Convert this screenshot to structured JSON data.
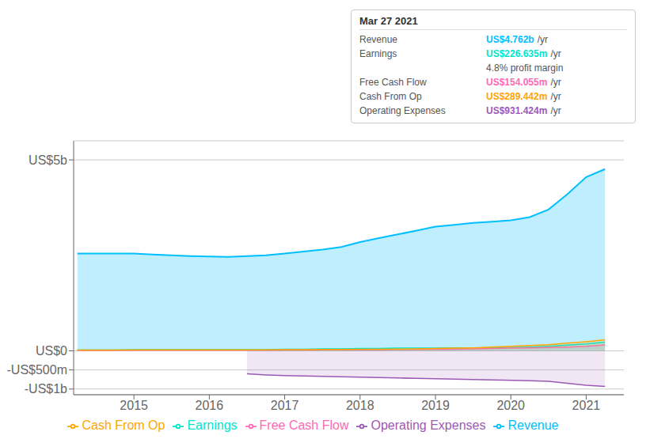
{
  "chart_data": {
    "type": "area",
    "x": [
      2014.25,
      2014.5,
      2014.75,
      2015.0,
      2015.25,
      2015.5,
      2015.75,
      2016.0,
      2016.25,
      2016.5,
      2016.75,
      2017.0,
      2017.25,
      2017.5,
      2017.75,
      2018.0,
      2018.25,
      2018.5,
      2018.75,
      2019.0,
      2019.25,
      2019.5,
      2019.75,
      2020.0,
      2020.25,
      2020.5,
      2020.75,
      2021.0,
      2021.25
    ],
    "series": [
      {
        "name": "Revenue",
        "color": "#00bfff",
        "values": [
          2.55,
          2.55,
          2.55,
          2.55,
          2.52,
          2.5,
          2.48,
          2.47,
          2.46,
          2.48,
          2.5,
          2.55,
          2.6,
          2.65,
          2.72,
          2.85,
          2.95,
          3.05,
          3.15,
          3.25,
          3.3,
          3.35,
          3.38,
          3.42,
          3.5,
          3.7,
          4.1,
          4.55,
          4.76
        ]
      },
      {
        "name": "Earnings",
        "color": "#00e5cc",
        "values": [
          0.02,
          0.02,
          0.02,
          0.03,
          0.03,
          0.03,
          0.03,
          0.03,
          0.03,
          0.03,
          0.03,
          0.04,
          0.04,
          0.05,
          0.05,
          0.06,
          0.06,
          0.07,
          0.07,
          0.07,
          0.08,
          0.08,
          0.08,
          0.09,
          0.1,
          0.12,
          0.15,
          0.18,
          0.226
        ]
      },
      {
        "name": "Free Cash Flow",
        "color": "#ff69b4",
        "values": [
          0.01,
          0.01,
          0.01,
          0.015,
          0.015,
          0.015,
          0.015,
          0.015,
          0.015,
          0.015,
          0.015,
          0.02,
          0.02,
          0.025,
          0.025,
          0.03,
          0.03,
          0.035,
          0.035,
          0.04,
          0.04,
          0.05,
          0.06,
          0.07,
          0.08,
          0.09,
          0.1,
          0.12,
          0.154
        ]
      },
      {
        "name": "Cash From Op",
        "color": "#ffa500",
        "values": [
          0.02,
          0.02,
          0.02,
          0.025,
          0.025,
          0.025,
          0.025,
          0.025,
          0.025,
          0.025,
          0.025,
          0.03,
          0.03,
          0.035,
          0.035,
          0.04,
          0.04,
          0.045,
          0.05,
          0.06,
          0.07,
          0.08,
          0.1,
          0.12,
          0.14,
          0.16,
          0.2,
          0.24,
          0.289
        ]
      },
      {
        "name": "Operating Expenses",
        "color": "#9b59b6",
        "values": [
          null,
          null,
          null,
          null,
          null,
          null,
          null,
          null,
          null,
          -0.6,
          -0.63,
          -0.65,
          -0.66,
          -0.67,
          -0.68,
          -0.69,
          -0.7,
          -0.71,
          -0.72,
          -0.73,
          -0.74,
          -0.75,
          -0.76,
          -0.77,
          -0.78,
          -0.8,
          -0.85,
          -0.9,
          -0.931
        ]
      }
    ],
    "xlim": [
      2014.2,
      2021.5
    ],
    "xticks": [
      2015,
      2016,
      2017,
      2018,
      2019,
      2020,
      2021
    ],
    "ylim": [
      -1.15,
      5.5
    ],
    "yticks": [
      {
        "value": -1,
        "label": "-US$1b"
      },
      {
        "value": -0.5,
        "label": "-US$500m"
      },
      {
        "value": 0,
        "label": "US$0"
      },
      {
        "value": 5,
        "label": "US$5b"
      }
    ],
    "grid": true,
    "legend": "bottom",
    "annotations": [
      {
        "text": "Mar 27 2021"
      },
      {
        "label": "Revenue",
        "text": "US$4.762b",
        "unit": "/yr",
        "color": "#00bfff"
      },
      {
        "label": "Earnings",
        "text": "US$226.635m",
        "unit": "/yr",
        "color": "#00e5cc"
      },
      {
        "text": "4.8% profit margin"
      },
      {
        "label": "Free Cash Flow",
        "text": "US$154.055m",
        "unit": "/yr",
        "color": "#ff69b4"
      },
      {
        "label": "Cash From Op",
        "text": "US$289.442m",
        "unit": "/yr",
        "color": "#ffa500"
      },
      {
        "label": "Operating Expenses",
        "text": "US$931.424m",
        "unit": "/yr",
        "color": "#9b59b6"
      }
    ]
  }
}
